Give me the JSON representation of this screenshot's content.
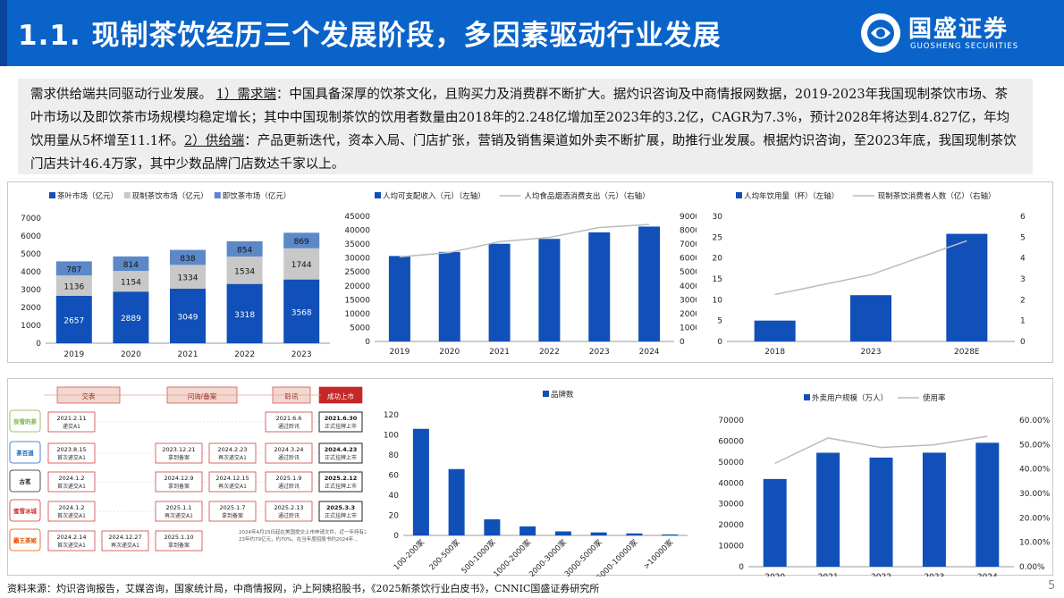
{
  "header": {
    "title": "1.1. 现制茶饮经历三个发展阶段，多因素驱动行业发展",
    "logo_cn": "国盛证券",
    "logo_en": "GUOSHENG SECURITIES"
  },
  "summary": {
    "p1": "需求供给端共同驱动行业发展。",
    "k1": "1）需求端",
    "p2": "：中国具备深厚的饮茶文化，且购买力及消费群不断扩大。据灼识咨询及中商情报网数据，2019-2023年我国现制茶饮市场、茶叶市场以及即饮茶市场规模均稳定增长；其中中国现制茶饮的饮用者数量由2018年的2.248亿增加至2023年的3.2亿，CAGR为7.3%，预计2028年将达到4.827亿，年均饮用量从5杯增至11.1杯。",
    "k2": "2）供给端",
    "p3": "：产品更新迭代，资本入局、门店扩张，营销及销售渠道如外卖不断扩展，助推行业发展。根据灼识咨询，至2023年底，我国现制茶饮门店共计46.4万家，其中少数品牌门店数达千家以上。"
  },
  "chart_data": [
    {
      "type": "bar",
      "stacked": true,
      "categories": [
        "2019",
        "2020",
        "2021",
        "2022",
        "2023"
      ],
      "series": [
        {
          "name": "茶叶市场（亿元）",
          "color": "#1050b8",
          "values": [
            2657,
            2889,
            3049,
            3318,
            3568
          ]
        },
        {
          "name": "现制茶饮市场（亿元）",
          "color": "#c8c8c8",
          "values": [
            1136,
            1154,
            1334,
            1534,
            1744
          ]
        },
        {
          "name": "即饮茶市场（亿元）",
          "color": "#5c88c8",
          "values": [
            787,
            814,
            838,
            854,
            869
          ]
        }
      ],
      "yticks": [
        "0",
        "1000",
        "2000",
        "3000",
        "4000",
        "5000",
        "6000",
        "7000"
      ],
      "ylim": [
        0,
        7000
      ]
    },
    {
      "type": "bar+line",
      "categories": [
        "2019",
        "2020",
        "2021",
        "2022",
        "2023",
        "2024"
      ],
      "series": [
        {
          "name": "人均可支配收入（元）（左轴）",
          "color": "#1050b8",
          "axis": "left",
          "values": [
            30733,
            32189,
            35128,
            36883,
            39218,
            41314
          ]
        },
        {
          "name": "人均食品烟酒消费支出（元）（右轴）",
          "color": "#bbbbbb",
          "axis": "right",
          "values": [
            6084,
            6397,
            7178,
            7481,
            8195,
            8411
          ]
        }
      ],
      "yticks_left": [
        "0",
        "5000",
        "10000",
        "15000",
        "20000",
        "25000",
        "30000",
        "35000",
        "40000",
        "45000"
      ],
      "yticks_right": [
        "0",
        "1000",
        "2000",
        "3000",
        "4000",
        "5000",
        "6000",
        "7000",
        "8000",
        "9000"
      ],
      "ylim_left": [
        0,
        45000
      ],
      "ylim_right": [
        0,
        9000
      ]
    },
    {
      "type": "bar+line",
      "categories": [
        "2018",
        "2023",
        "2028E"
      ],
      "series": [
        {
          "name": "人均年饮用量（杯）（左轴）",
          "color": "#1050b8",
          "axis": "left",
          "values": [
            5,
            11.1,
            25.8
          ]
        },
        {
          "name": "现制茶饮消费者人数（亿）（右轴）",
          "color": "#bbbbbb",
          "axis": "right",
          "values": [
            2.248,
            3.2,
            4.827
          ]
        }
      ],
      "yticks_left": [
        "0",
        "5",
        "10",
        "15",
        "20",
        "25",
        "30"
      ],
      "yticks_right": [
        "0",
        "1",
        "2",
        "3",
        "4",
        "5",
        "6"
      ],
      "ylim_left": [
        0,
        30
      ],
      "ylim_right": [
        0,
        6
      ]
    },
    {
      "type": "bar",
      "categories": [
        "100-200家",
        "200-500家",
        "500-1000家",
        "1000-2000家",
        "2000-3000家",
        "3000-5000家",
        "5000-10000家",
        ">10000家"
      ],
      "series": [
        {
          "name": "品牌数",
          "color": "#1050b8",
          "values": [
            106,
            66,
            16,
            9,
            4,
            3,
            2,
            1
          ]
        }
      ],
      "yticks": [
        "0",
        "20",
        "40",
        "60",
        "80",
        "100",
        "120"
      ],
      "ylim": [
        0,
        120
      ]
    },
    {
      "type": "bar+line",
      "categories": [
        "2020",
        "2021",
        "2022",
        "2023",
        "2024"
      ],
      "series": [
        {
          "name": "外卖用户规模（万人）",
          "color": "#1050b8",
          "axis": "left",
          "values": [
            41883,
            54416,
            52116,
            54454,
            59185
          ]
        },
        {
          "name": "使用率",
          "color": "#bbbbbb",
          "axis": "right",
          "values": [
            42.3,
            52.7,
            48.8,
            49.9,
            53.4
          ]
        }
      ],
      "yticks_left": [
        "0",
        "10000",
        "20000",
        "30000",
        "40000",
        "50000",
        "60000",
        "70000"
      ],
      "yticks_right": [
        "0.00%",
        "10.00%",
        "20.00%",
        "30.00%",
        "40.00%",
        "50.00%",
        "60.00%"
      ],
      "ylim_left": [
        0,
        70000
      ],
      "ylim_right": [
        0,
        60
      ]
    }
  ],
  "timeline": {
    "stages": [
      "交表",
      "问询/备案",
      "聆讯",
      "成功上市"
    ],
    "rows": [
      {
        "logo": "奈雪的茶",
        "logo_color": "#7cb342",
        "items": [
          "2021.2.11\n递交A1",
          "2021.6.6\n通过聆讯",
          "2021.6.30\n正式挂牌上市"
        ]
      },
      {
        "logo": "茶百道",
        "logo_color": "#1565c0",
        "items": [
          "2023.8.15\n首次递交A1",
          "2023.12.21\n拿到备案",
          "2024.2.23\n再次递交A1",
          "2024.3.24\n通过聆讯",
          "2024.4.23\n正式挂牌上市"
        ]
      },
      {
        "logo": "古茗",
        "logo_color": "#222222",
        "items": [
          "2024.1.2\n首次递交A1",
          "2024.12.9\n拿到备案",
          "2024.12.15\n再次递交A1",
          "2025.1.9\n通过聆讯",
          "2025.2.12\n正式挂牌上市"
        ]
      },
      {
        "logo": "蜜雪冰城",
        "logo_color": "#d32f2f",
        "items": [
          "2024.1.2\n首次递交A1",
          "2025.1.1\n再次递交A1",
          "2025.1.7\n拿到备案",
          "2025.2.13\n通过聆讯",
          "2025.3.3\n正式挂牌上市"
        ]
      },
      {
        "logo": "霸王茶姬",
        "logo_color": "#e65100",
        "items": [
          "2024.2.14\n首次递交A1",
          "2024.12.27\n再次递交A1",
          "2025.1.10\n拿到备案"
        ]
      }
    ],
    "note": "2024年4月15日起在美国提交上市申请文件，近一年持有2023年约79亿元，约70%，在当年度招股书约2024年..."
  },
  "footer": "资料来源：灼识咨询报告，艾媒咨询，国家统计局，中商情报网，沪上阿姨招股书，《2025新茶饮行业白皮书》，CNNIC国盛证券研究所",
  "page_number": "5"
}
